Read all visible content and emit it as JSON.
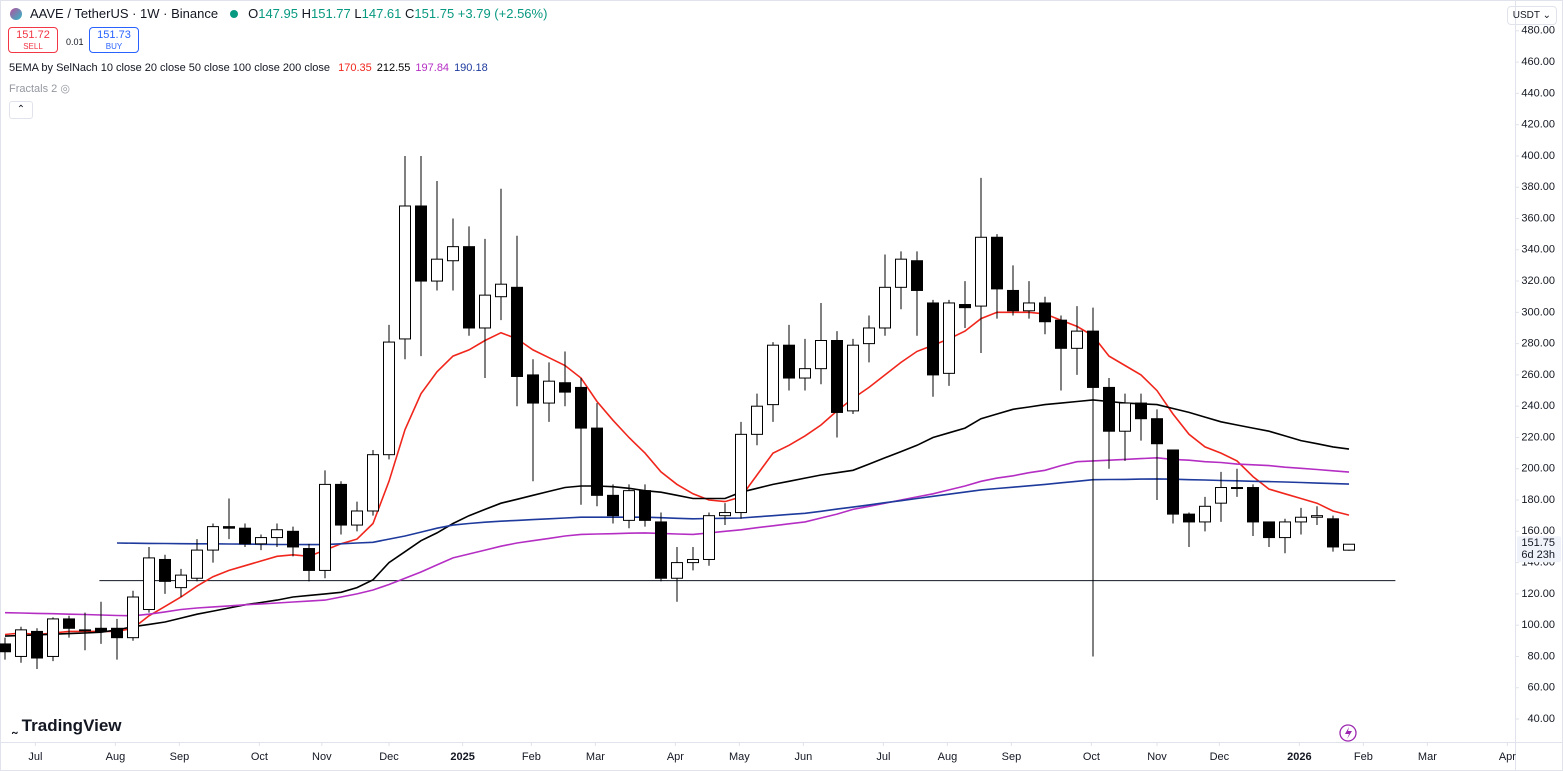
{
  "header": {
    "symbol": "AAVE / TetherUS · 1W · Binance",
    "ohlc_prefixes": [
      "O",
      "H",
      "L",
      "C"
    ],
    "change": "+3.79 (+2.56%)"
  },
  "toolbar": {
    "sell_price": "151.72",
    "sell": "SELL",
    "spread": "0.01",
    "buy_price": "151.73",
    "buy": "BUY"
  },
  "indicators": {
    "ema_label": "5EMA by SelNach 10 close 20 close 50 close 100 close 200 close",
    "fractals": "Fractals 2"
  },
  "currency": "USDT",
  "countdown": "6d 23h",
  "brand": "TradingView",
  "chart_data": {
    "type": "candlestick",
    "up_color": "#ffffff",
    "down_color": "#000000",
    "border_color": "#000000",
    "open": [
      88,
      80,
      96,
      80,
      104,
      97,
      98,
      98,
      92,
      110,
      142,
      124,
      130,
      148,
      163,
      162,
      152,
      156,
      160,
      149,
      135,
      190,
      164,
      173,
      209,
      283,
      368,
      320,
      333,
      342,
      290,
      310,
      316,
      260,
      242,
      255,
      252,
      226,
      183,
      167,
      186,
      166,
      130,
      140,
      142,
      170,
      172,
      222,
      241,
      279,
      258,
      264,
      282,
      237,
      280,
      290,
      316,
      333,
      306,
      261,
      305,
      304,
      348,
      314,
      301,
      306,
      295,
      277,
      288,
      252,
      224,
      242,
      232,
      212,
      171,
      166,
      178,
      188,
      188,
      166,
      156,
      166,
      169,
      168,
      147.95
    ],
    "high": [
      92,
      99,
      98,
      105,
      106,
      108,
      115,
      104,
      122,
      150,
      145,
      136,
      155,
      165,
      181,
      165,
      158,
      165,
      163,
      152,
      199,
      192,
      179,
      212,
      292,
      400,
      400,
      384,
      360,
      355,
      347,
      379,
      349,
      270,
      268,
      275,
      258,
      242,
      190,
      190,
      190,
      172,
      150,
      150,
      172,
      178,
      230,
      248,
      281,
      292,
      283,
      306,
      288,
      283,
      298,
      337,
      339,
      339,
      308,
      308,
      320,
      386,
      350,
      330,
      320,
      310,
      298,
      304,
      303,
      258,
      248,
      248,
      238,
      212,
      172,
      182,
      198,
      200,
      190,
      166,
      168,
      175,
      176,
      170,
      151.77
    ],
    "low": [
      78,
      76,
      72,
      77,
      92,
      84,
      88,
      78,
      90,
      108,
      120,
      118,
      128,
      140,
      155,
      150,
      148,
      150,
      144,
      128,
      130,
      158,
      160,
      170,
      206,
      270,
      272,
      314,
      314,
      285,
      258,
      295,
      240,
      192,
      230,
      240,
      177,
      176,
      165,
      162,
      163,
      128,
      115,
      135,
      138,
      164,
      168,
      215,
      230,
      250,
      250,
      254,
      220,
      235,
      268,
      285,
      302,
      285,
      246,
      253,
      290,
      274,
      296,
      298,
      296,
      286,
      250,
      260,
      80,
      200,
      205,
      218,
      180,
      165,
      150,
      160,
      166,
      182,
      157,
      150,
      146,
      158,
      164,
      147,
      147.61
    ],
    "close": [
      83,
      97,
      79,
      104,
      98,
      97,
      96,
      92,
      118,
      143,
      128,
      132,
      148,
      163,
      162,
      152,
      156,
      161,
      150,
      135,
      190,
      164,
      173,
      209,
      281,
      368,
      320,
      334,
      342,
      290,
      311,
      318,
      259,
      242,
      256,
      249,
      226,
      183,
      170,
      186,
      167,
      130,
      140,
      142,
      170,
      172,
      222,
      240,
      279,
      258,
      264,
      282,
      236,
      279,
      290,
      316,
      334,
      314,
      260,
      306,
      303,
      348,
      315,
      301,
      306,
      294,
      277,
      288,
      252,
      224,
      242,
      232,
      216,
      171,
      166,
      176,
      188,
      188,
      166,
      156,
      166,
      169,
      170,
      150,
      151.75
    ],
    "series": [
      {
        "color": "#f0261c",
        "values": [
          94,
          95,
          94,
          95,
          96,
          96,
          96,
          96,
          98,
          106,
          112,
          118,
          125,
          131,
          135,
          138,
          141,
          144,
          145,
          144,
          148,
          152,
          155,
          165,
          192,
          225,
          248,
          262,
          272,
          276,
          282,
          287,
          283,
          276,
          271,
          266,
          258,
          243,
          231,
          220,
          210,
          198,
          190,
          184,
          180,
          179,
          182,
          196,
          210,
          215,
          221,
          228,
          237,
          245,
          252,
          260,
          268,
          275,
          279,
          283,
          288,
          296,
          300,
          300,
          300,
          299,
          295,
          291,
          285,
          272,
          266,
          260,
          250,
          235,
          222,
          214,
          210,
          205,
          195,
          187,
          184,
          181,
          178,
          173,
          170.35
        ]
      },
      {
        "color": "#000000",
        "values": [
          93,
          93.4,
          93.8,
          94.2,
          94.6,
          95,
          95.5,
          97,
          99,
          100.5,
          102,
          104.5,
          107,
          109,
          111,
          113,
          114.5,
          116,
          118,
          119,
          120,
          121,
          124,
          129,
          140,
          147,
          154,
          159,
          165,
          170,
          174,
          178,
          180.5,
          183,
          185.5,
          188,
          189,
          189,
          188.5,
          187.5,
          186,
          185,
          183,
          181,
          181,
          181,
          185,
          187.5,
          190,
          192,
          194,
          196,
          197.5,
          199,
          203,
          207,
          211,
          215,
          220,
          223,
          226,
          232,
          235,
          238,
          239.5,
          241,
          242,
          243,
          244,
          243,
          242,
          241.5,
          241,
          238.5,
          236,
          233,
          230,
          228,
          226,
          224,
          221,
          218,
          216,
          214,
          212.55
        ]
      },
      {
        "color": "#b52ec4",
        "values": [
          108,
          107.8,
          107.5,
          107.3,
          107,
          106.8,
          106.5,
          106.2,
          106,
          107,
          108.5,
          110,
          111,
          111.7,
          112.3,
          113,
          113.6,
          114.2,
          114.8,
          115.4,
          116,
          118,
          120,
          122.5,
          126,
          130,
          134,
          138.5,
          143,
          145.5,
          148,
          150.5,
          152.5,
          154,
          155.5,
          157,
          158,
          158.3,
          158.5,
          158.8,
          159,
          158.7,
          158.3,
          158,
          159,
          160,
          161,
          162.3,
          163.5,
          164.8,
          166,
          168.5,
          171,
          174,
          176,
          178,
          180,
          182,
          184,
          186.5,
          189,
          192,
          194,
          195.5,
          197.5,
          199,
          202,
          204.5,
          205,
          205.5,
          206,
          206.5,
          207,
          206,
          205.5,
          204.5,
          204,
          203,
          202.5,
          202,
          201,
          200.3,
          199.5,
          198.7,
          197.84
        ]
      },
      {
        "color": "#1e3a9c",
        "values": [
          null,
          null,
          null,
          null,
          null,
          null,
          null,
          152.5,
          152.4,
          152.3,
          152.2,
          152.1,
          152,
          152,
          151.9,
          151.8,
          151.7,
          151.6,
          151.6,
          151.5,
          151.5,
          152,
          152.5,
          153,
          155,
          157,
          159.5,
          162,
          164,
          165,
          165.8,
          166.5,
          167,
          167.5,
          168,
          168.5,
          169,
          169,
          169,
          169,
          169,
          168.7,
          168.3,
          168,
          168.2,
          168.3,
          168.5,
          169.3,
          170,
          170.8,
          171.5,
          172.8,
          174.2,
          175.5,
          176.9,
          178.3,
          179.6,
          181,
          182.4,
          183.7,
          185.1,
          186.5,
          187.4,
          188.2,
          189.1,
          190,
          191,
          192,
          193,
          193.1,
          193.2,
          193.4,
          193.5,
          193.3,
          193,
          192.8,
          192.5,
          192.3,
          192,
          191.8,
          191.5,
          191.2,
          190.8,
          190.5,
          190.18
        ]
      }
    ],
    "horizontal_line": 128.5,
    "ylim": [
      25.3,
      499.7
    ],
    "yticks": [
      {
        "value": 40,
        "label": "40.00"
      },
      {
        "value": 60,
        "label": "60.00"
      },
      {
        "value": 80,
        "label": "80.00"
      },
      {
        "value": 100,
        "label": "100.00"
      },
      {
        "value": 120,
        "label": "120.00"
      },
      {
        "value": 140,
        "label": "140.00"
      },
      {
        "value": 160,
        "label": "160.00"
      },
      {
        "value": 180,
        "label": "180.00"
      },
      {
        "value": 200,
        "label": "200.00"
      },
      {
        "value": 220,
        "label": "220.00"
      },
      {
        "value": 240,
        "label": "240.00"
      },
      {
        "value": 260,
        "label": "260.00"
      },
      {
        "value": 280,
        "label": "280.00"
      },
      {
        "value": 300,
        "label": "300.00"
      },
      {
        "value": 320,
        "label": "320.00"
      },
      {
        "value": 340,
        "label": "340.00"
      },
      {
        "value": 360,
        "label": "360.00"
      },
      {
        "value": 380,
        "label": "380.00"
      },
      {
        "value": 400,
        "label": "400.00"
      },
      {
        "value": 420,
        "label": "420.00"
      },
      {
        "value": 440,
        "label": "440.00"
      },
      {
        "value": 460,
        "label": "460.00"
      },
      {
        "value": 480,
        "label": "480.00"
      }
    ],
    "xlim": [
      -0.3125,
      94.375
    ],
    "xticks": [
      {
        "value": 1.9,
        "label": "Jul"
      },
      {
        "value": 6.9,
        "label": "Aug"
      },
      {
        "value": 10.9,
        "label": "Sep"
      },
      {
        "value": 15.9,
        "label": "Oct"
      },
      {
        "value": 19.8,
        "label": "Nov"
      },
      {
        "value": 24,
        "label": "Dec"
      },
      {
        "value": 28.6,
        "label": "2025"
      },
      {
        "value": 32.9,
        "label": "Feb"
      },
      {
        "value": 36.9,
        "label": "Mar"
      },
      {
        "value": 41.9,
        "label": "Apr"
      },
      {
        "value": 45.9,
        "label": "May"
      },
      {
        "value": 49.9,
        "label": "Jun"
      },
      {
        "value": 54.9,
        "label": "Jul"
      },
      {
        "value": 58.9,
        "label": "Aug"
      },
      {
        "value": 62.9,
        "label": "Sep"
      },
      {
        "value": 67.9,
        "label": "Oct"
      },
      {
        "value": 72,
        "label": "Nov"
      },
      {
        "value": 75.9,
        "label": "Dec"
      },
      {
        "value": 80.9,
        "label": "2026"
      },
      {
        "value": 84.9,
        "label": "Feb"
      },
      {
        "value": 88.9,
        "label": "Mar"
      },
      {
        "value": 93.9,
        "label": "Apr"
      }
    ]
  }
}
